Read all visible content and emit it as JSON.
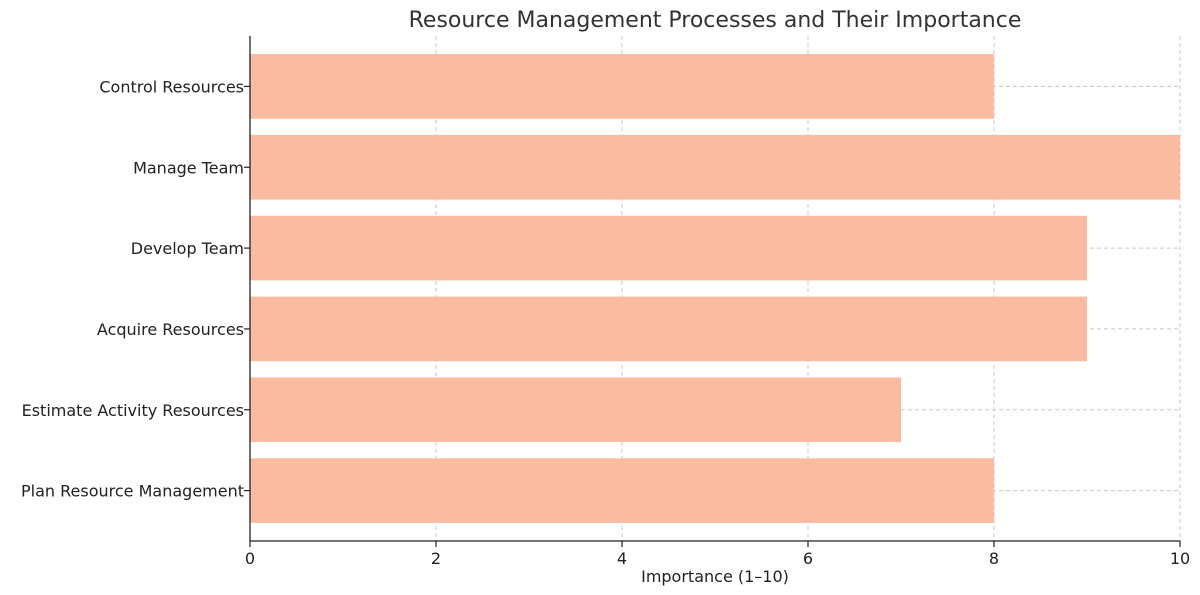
{
  "chart_data": {
    "type": "bar",
    "orientation": "horizontal",
    "title": "Resource Management Processes and Their Importance",
    "xlabel": "Importance (1–10)",
    "ylabel": "",
    "xlim": [
      0,
      10
    ],
    "xticks": [
      0,
      2,
      4,
      6,
      8,
      10
    ],
    "grid": true,
    "bar_color": "#FBBBA1",
    "categories": [
      "Plan Resource Management",
      "Estimate Activity Resources",
      "Acquire Resources",
      "Develop Team",
      "Manage Team",
      "Control Resources"
    ],
    "values": [
      8,
      7,
      9,
      9,
      10,
      8
    ]
  }
}
